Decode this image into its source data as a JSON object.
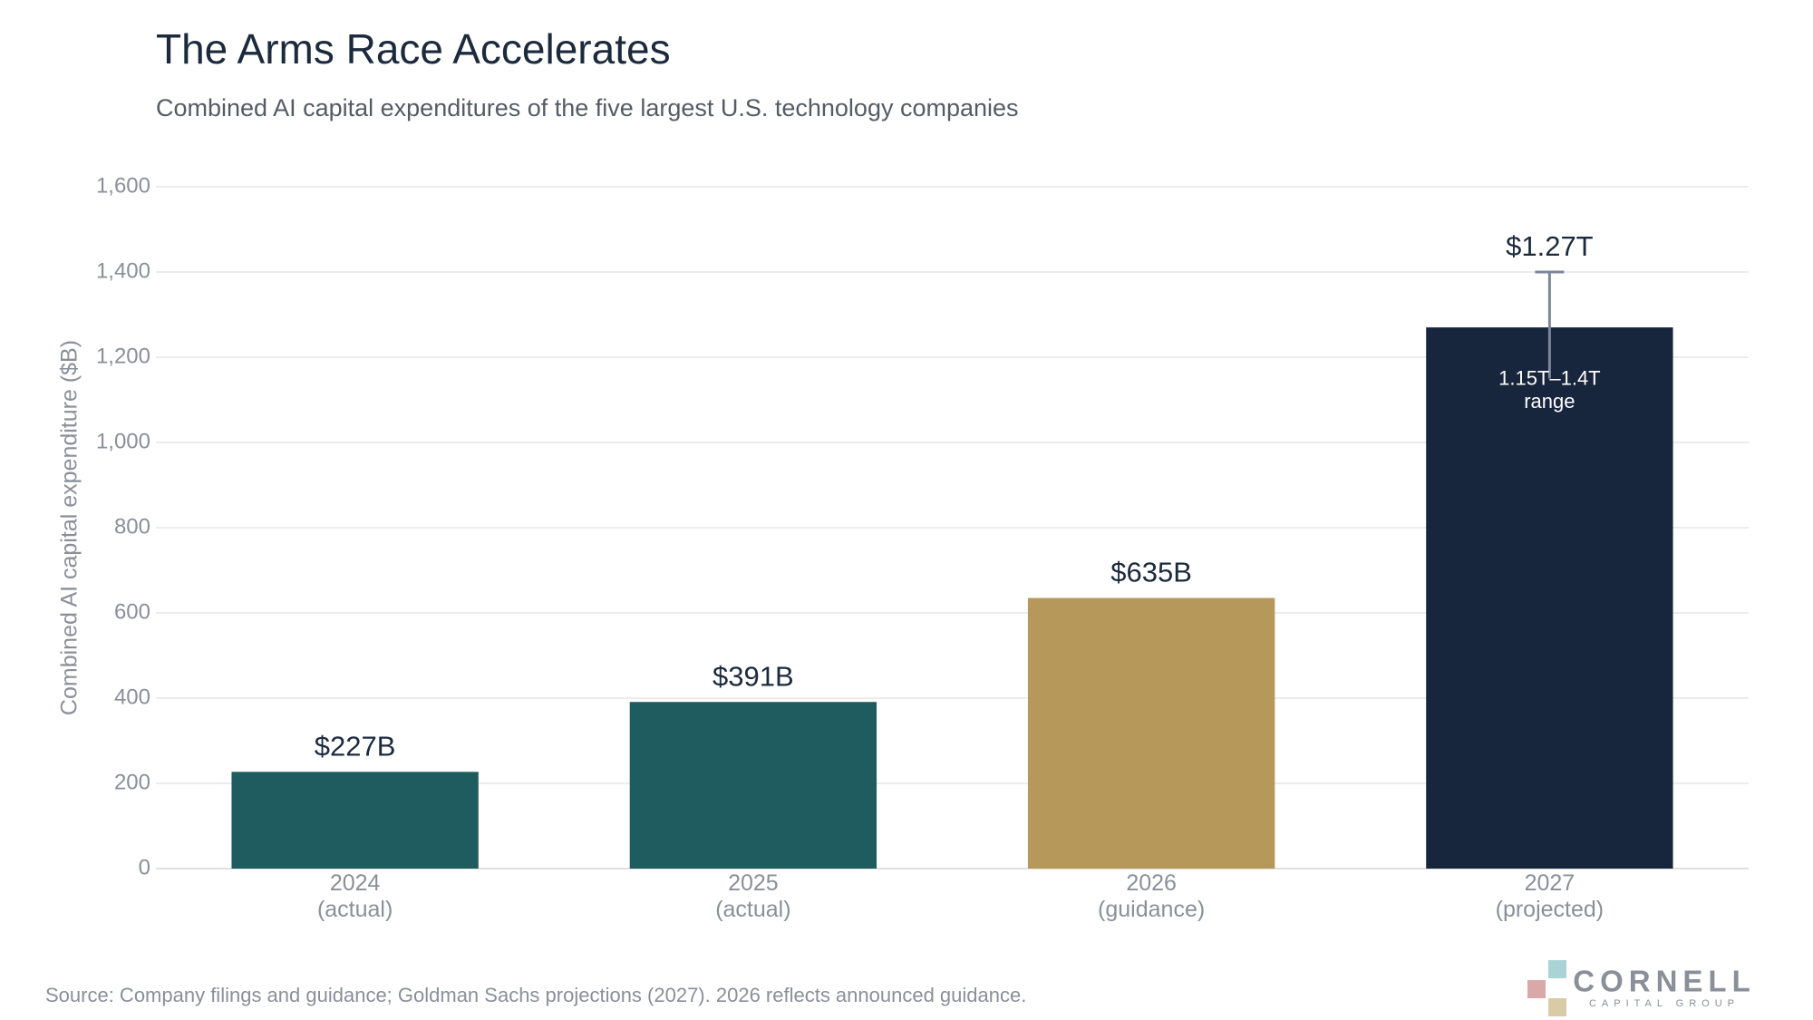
{
  "chart_data": {
    "type": "bar",
    "title": "The Arms Race Accelerates",
    "subtitle": "Combined AI capital expenditures of the five largest U.S. technology companies",
    "y_label": "Combined AI capital expenditure ($B)",
    "categories": [
      "2024\n(actual)",
      "2025\n(actual)",
      "2026\n(guidance)",
      "2027\n(projected)"
    ],
    "values": [
      227,
      391,
      635,
      1270
    ],
    "value_labels": [
      "$227B",
      "$391B",
      "$635B",
      "$1.27T"
    ],
    "colors": [
      "#1f5c5f",
      "#1f5c5f",
      "#b5985a",
      "#17253d"
    ],
    "error_low": [
      null,
      null,
      null,
      1150
    ],
    "error_high": [
      null,
      null,
      null,
      1400
    ],
    "annotation": "1.15T–1.4T\nrange",
    "ylim": [
      0,
      1600
    ],
    "yticks": [
      0,
      200,
      400,
      600,
      800,
      {
        "value": 1000,
        "label": "1,000"
      },
      {
        "value": 1200,
        "label": "1,200"
      },
      {
        "value": 1400,
        "label": "1,400"
      },
      {
        "value": 1600,
        "label": "1,600"
      }
    ],
    "grid": true,
    "source": "Source: Company filings and guidance; Goldman Sachs projections (2027). 2026 reflects announced guidance.",
    "logo": {
      "name": "CORNELL",
      "tagline": "CAPITAL GROUP"
    }
  }
}
